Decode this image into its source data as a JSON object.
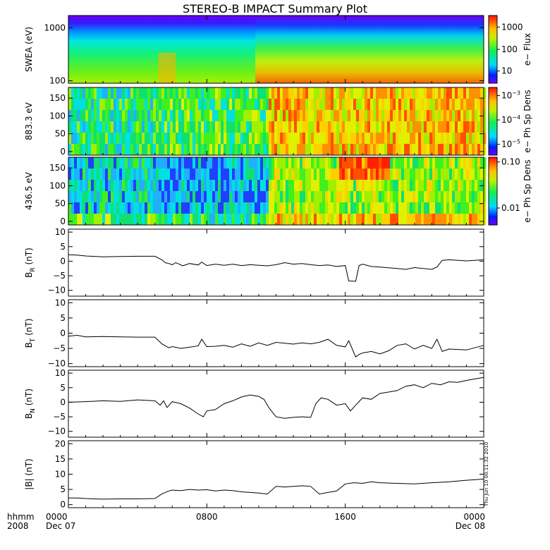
{
  "chart_data": {
    "title": "STEREO-B IMPACT Summary Plot",
    "type": "multi-panel",
    "x_axis": {
      "range": [
        "2008-12-07 00:00",
        "2008-12-08 00:00"
      ],
      "row1_label": "hhmm",
      "row2_label": "2008",
      "ticks": [
        {
          "hour": 0,
          "label": "0000",
          "sub": "Dec 07"
        },
        {
          "hour": 8,
          "label": "0800",
          "sub": ""
        },
        {
          "hour": 16,
          "label": "1600",
          "sub": ""
        },
        {
          "hour": 24,
          "label": "0000",
          "sub": "Dec 08"
        }
      ]
    },
    "footer_stamp": "Thu Jun 10 00:11:32 2010",
    "panels": [
      {
        "id": "swea",
        "type": "heatmap",
        "ylabel": "SWEA (eV)",
        "ylim": [
          90,
          1700
        ],
        "ylog": true,
        "yticks": [
          {
            "v": 100,
            "t": "100"
          },
          {
            "v": 1000,
            "t": "1000"
          }
        ],
        "colorbar": {
          "label": "e− Flux",
          "ticks": [
            {
              "t": "1000",
              "f": 0.83
            },
            {
              "t": "100",
              "f": 0.5
            },
            {
              "t": "10",
              "f": 0.18
            }
          ]
        }
      },
      {
        "id": "pad883",
        "type": "heatmap",
        "ylabel": "883.3 eV",
        "ylim": [
          -10,
          180
        ],
        "yticks": [
          {
            "v": 0,
            "t": "0"
          },
          {
            "v": 50,
            "t": "50"
          },
          {
            "v": 100,
            "t": "100"
          },
          {
            "v": 150,
            "t": "150"
          }
        ],
        "colorbar": {
          "label": "e− Ph Sp Dens",
          "ticks": [
            {
              "t": "10",
              "e": "−3",
              "f": 0.88
            },
            {
              "t": "10",
              "e": "−4",
              "f": 0.52
            },
            {
              "t": "10",
              "e": "−5",
              "f": 0.16
            }
          ]
        }
      },
      {
        "id": "pad436",
        "type": "heatmap",
        "ylabel": "436.5 eV",
        "ylim": [
          -10,
          180
        ],
        "yticks": [
          {
            "v": 0,
            "t": "0"
          },
          {
            "v": 50,
            "t": "50"
          },
          {
            "v": 100,
            "t": "100"
          },
          {
            "v": 150,
            "t": "150"
          }
        ],
        "colorbar": {
          "label": "e− Ph Sp Dens",
          "ticks": [
            {
              "t": "0.10",
              "f": 0.93
            },
            {
              "t": "0.01",
              "f": 0.25
            }
          ]
        }
      },
      {
        "id": "br",
        "type": "line",
        "ylabel": "B",
        "ysub": "R",
        "yunit": "(nT)",
        "ylim": [
          -12,
          11
        ],
        "yticks": [
          {
            "v": -10,
            "t": "−10"
          },
          {
            "v": -5,
            "t": "−5"
          },
          {
            "v": 0,
            "t": "0"
          },
          {
            "v": 5,
            "t": "5"
          },
          {
            "v": 10,
            "t": "10"
          }
        ],
        "x": [
          0,
          0.5,
          1,
          2,
          3,
          4,
          5,
          5.4,
          5.6,
          5.8,
          6,
          6.2,
          6.4,
          6.6,
          6.8,
          7,
          7.5,
          7.7,
          8,
          8.5,
          9,
          9.5,
          10,
          10.5,
          11,
          11.5,
          12,
          12.5,
          13,
          13.5,
          14,
          14.5,
          15,
          15.5,
          16,
          16.2,
          16.6,
          16.8,
          17,
          17.5,
          18,
          19,
          19.5,
          20,
          20.5,
          21,
          21.3,
          21.6,
          22,
          23,
          24
        ],
        "values": [
          2.2,
          2.1,
          1.8,
          1.5,
          1.6,
          1.7,
          1.7,
          0.5,
          -0.5,
          -0.8,
          -1.2,
          -0.5,
          -1.0,
          -1.6,
          -1.2,
          -0.8,
          -1.3,
          -0.3,
          -1.5,
          -1.0,
          -1.4,
          -1.0,
          -1.5,
          -1.2,
          -1.4,
          -1.6,
          -1.2,
          -0.5,
          -1.0,
          -0.8,
          -1.2,
          -1.5,
          -1.3,
          -1.8,
          -1.5,
          -6.8,
          -6.9,
          -1.5,
          -1.0,
          -1.8,
          -2.0,
          -2.5,
          -2.8,
          -2.2,
          -2.5,
          -2.8,
          -2.0,
          0.3,
          0.5,
          0.1,
          0.5
        ]
      },
      {
        "id": "bt",
        "type": "line",
        "ylabel": "B",
        "ysub": "T",
        "yunit": "(nT)",
        "ylim": [
          -11,
          11
        ],
        "yticks": [
          {
            "v": -10,
            "t": "−10"
          },
          {
            "v": -5,
            "t": "−5"
          },
          {
            "v": 0,
            "t": "0"
          },
          {
            "v": 5,
            "t": "5"
          },
          {
            "v": 10,
            "t": "10"
          }
        ],
        "x": [
          0,
          0.5,
          1,
          2,
          3,
          4,
          5,
          5.4,
          5.8,
          6,
          6.5,
          7,
          7.5,
          7.7,
          8,
          8.5,
          9,
          9.5,
          10,
          10.5,
          11,
          11.5,
          12,
          12.5,
          13,
          13.5,
          14,
          14.5,
          15,
          15.5,
          16,
          16.2,
          16.6,
          16.8,
          17,
          17.5,
          18,
          18.5,
          19,
          19.5,
          20,
          20.5,
          21,
          21.3,
          21.6,
          22,
          23,
          24
        ],
        "values": [
          -1.0,
          -0.7,
          -1.2,
          -1.1,
          -1.2,
          -1.3,
          -1.3,
          -3.5,
          -4.8,
          -4.4,
          -5.0,
          -4.6,
          -4.2,
          -2.0,
          -4.4,
          -4.3,
          -4.0,
          -4.6,
          -3.5,
          -4.3,
          -3.2,
          -4.0,
          -3.0,
          -3.3,
          -3.6,
          -3.2,
          -3.5,
          -3.0,
          -2.0,
          -4.0,
          -4.5,
          -2.5,
          -7.8,
          -7.0,
          -6.5,
          -6.0,
          -6.8,
          -5.8,
          -4.0,
          -3.5,
          -5.2,
          -4.0,
          -5.0,
          -2.0,
          -6.0,
          -5.2,
          -5.5,
          -4.0
        ]
      },
      {
        "id": "bn",
        "type": "line",
        "ylabel": "B",
        "ysub": "N",
        "yunit": "(nT)",
        "ylim": [
          -12,
          11
        ],
        "yticks": [
          {
            "v": -10,
            "t": "−10"
          },
          {
            "v": -5,
            "t": "−5"
          },
          {
            "v": 0,
            "t": "0"
          },
          {
            "v": 5,
            "t": "5"
          },
          {
            "v": 10,
            "t": "10"
          }
        ],
        "x": [
          0,
          1,
          2,
          3,
          4,
          5,
          5.3,
          5.5,
          5.7,
          6,
          6.5,
          7,
          7.5,
          7.8,
          8,
          8.5,
          9,
          9.5,
          10,
          10.5,
          11,
          11.3,
          11.6,
          12,
          12.5,
          13,
          13.5,
          14,
          14.3,
          14.6,
          15,
          15.5,
          16,
          16.3,
          16.6,
          17,
          17.5,
          18,
          18.5,
          19,
          19.5,
          20,
          20.5,
          21,
          21.5,
          22,
          22.5,
          23,
          23.5,
          24
        ],
        "values": [
          0.0,
          0.2,
          0.5,
          0.3,
          0.8,
          0.5,
          -1.0,
          0.5,
          -1.8,
          0.2,
          -0.5,
          -2.0,
          -4.0,
          -5.0,
          -3.0,
          -2.5,
          -0.5,
          0.5,
          1.8,
          2.5,
          2.0,
          1.0,
          -2.0,
          -5.0,
          -5.5,
          -5.2,
          -5.0,
          -5.2,
          -0.5,
          1.5,
          1.0,
          -1.0,
          -0.5,
          -3.0,
          -1.0,
          1.5,
          1.0,
          3.0,
          3.5,
          4.0,
          5.5,
          6.0,
          5.0,
          6.5,
          6.0,
          7.0,
          6.8,
          7.5,
          8.0,
          8.5
        ]
      },
      {
        "id": "bmag",
        "type": "line",
        "ylabel": "|B|",
        "ysub": "",
        "yunit": "(nT)",
        "ylim": [
          -1,
          21
        ],
        "yticks": [
          {
            "v": 0,
            "t": "0"
          },
          {
            "v": 5,
            "t": "5"
          },
          {
            "v": 10,
            "t": "10"
          },
          {
            "v": 15,
            "t": "15"
          },
          {
            "v": 20,
            "t": "20"
          }
        ],
        "x": [
          0,
          0.5,
          1,
          2,
          3,
          4,
          5,
          5.4,
          5.8,
          6,
          6.5,
          7,
          7.5,
          8,
          8.5,
          9,
          9.5,
          10,
          10.5,
          11,
          11.5,
          12,
          12.5,
          13,
          13.5,
          14,
          14.5,
          15,
          15.5,
          16,
          16.5,
          17,
          17.5,
          18,
          19,
          20,
          21,
          22,
          23,
          24
        ],
        "values": [
          2.2,
          2.2,
          2.0,
          1.8,
          1.9,
          1.9,
          2.0,
          3.5,
          4.5,
          4.8,
          4.6,
          5.0,
          4.8,
          4.9,
          4.5,
          4.8,
          4.6,
          4.2,
          4.0,
          3.8,
          3.5,
          6.0,
          5.8,
          6.0,
          6.2,
          6.0,
          3.5,
          4.0,
          4.5,
          6.8,
          7.2,
          7.0,
          7.5,
          7.2,
          7.0,
          6.8,
          7.2,
          7.5,
          8.0,
          8.4
        ]
      }
    ]
  }
}
